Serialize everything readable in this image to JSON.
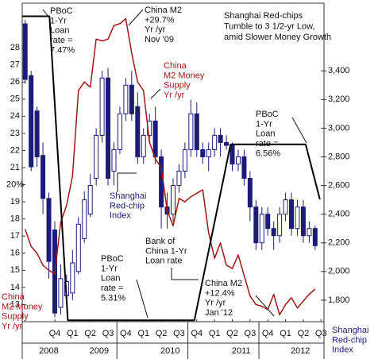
{
  "chart_data": {
    "type": "candlestick",
    "x": [
      5,
      6,
      7,
      8,
      9,
      10,
      11,
      12,
      13,
      14,
      15,
      16,
      17,
      18,
      19,
      20,
      21,
      22,
      23,
      24,
      25,
      26,
      27,
      28,
      29,
      30,
      31,
      32,
      33,
      34,
      35,
      36,
      37,
      38,
      39,
      40,
      41,
      42,
      43,
      44,
      45,
      46,
      47,
      48,
      49,
      50,
      51,
      52,
      53,
      54
    ],
    "xlim": [
      5,
      56
    ],
    "ylim": [
      12,
      30
    ],
    "yticks": [
      13,
      14,
      15,
      16,
      17,
      18,
      19,
      {
        "value": 20,
        "label": "20%"
      },
      21,
      22,
      23,
      24,
      25,
      26,
      27,
      28
    ],
    "y2lim": [
      1650,
      3800
    ],
    "y2ticks": [
      {
        "value": 1800,
        "label": "1,800"
      },
      {
        "value": 2000,
        "label": "2,000"
      },
      {
        "value": 2200,
        "label": "2,200"
      },
      {
        "value": 2400,
        "label": "2,400"
      },
      {
        "value": 2600,
        "label": "2,600"
      },
      {
        "value": 2800,
        "label": "2,800"
      },
      {
        "value": 3000,
        "label": "3,000"
      },
      {
        "value": 3200,
        "label": "3,200"
      },
      {
        "value": 3400,
        "label": "3,400"
      }
    ],
    "y3lim": [
      5.3,
      7.49
    ],
    "xticks": [
      {
        "value": 10.5,
        "label": "Q4"
      },
      {
        "value": 13.5,
        "label": "Q1"
      },
      {
        "value": 16.5,
        "label": "Q2"
      },
      {
        "value": 19.5,
        "label": "Q3"
      },
      {
        "value": 22.5,
        "label": "Q4"
      },
      {
        "value": 25.5,
        "label": "Q1"
      },
      {
        "value": 28.5,
        "label": "Q2"
      },
      {
        "value": 31.5,
        "label": "Q3"
      },
      {
        "value": 34.5,
        "label": "Q4"
      },
      {
        "value": 37.5,
        "label": "Q1"
      },
      {
        "value": 40.5,
        "label": "Q2"
      },
      {
        "value": 43.5,
        "label": "Q3"
      },
      {
        "value": 46.5,
        "label": "Q4"
      },
      {
        "value": 49.5,
        "label": "Q1"
      },
      {
        "value": 52.5,
        "label": "Q2"
      },
      {
        "value": 55.5,
        "label": "Q3"
      }
    ],
    "years": [
      {
        "value": 9.5,
        "label": "2008"
      },
      {
        "value": 18,
        "label": "2009"
      },
      {
        "value": 30,
        "label": "2010"
      },
      {
        "value": 42,
        "label": "2011"
      },
      {
        "value": 52,
        "label": "2012"
      }
    ],
    "series": [
      {
        "type": "candlestick",
        "axis": "y2",
        "color": "#1c1c78",
        "open": [
          3728,
          3367,
          3120,
          2810,
          2510,
          2290,
          1750,
          1830,
          1850,
          2000,
          2230,
          2400,
          2650,
          2950,
          3350,
          2700,
          2850,
          3100,
          3300,
          3150,
          2800,
          2950,
          3050,
          2800,
          2450,
          2400,
          2600,
          2700,
          2850,
          3100,
          2850,
          2800,
          2850,
          2950,
          2900,
          2880,
          2750,
          2800,
          2650,
          2450,
          2200,
          2400,
          2300,
          2250,
          2400,
          2500,
          2300,
          2450,
          2250,
          2300
        ],
        "high": [
          3755,
          3400,
          3150,
          2900,
          2550,
          2350,
          2050,
          1980,
          2150,
          2380,
          2560,
          2680,
          3000,
          3400,
          3420,
          2900,
          3150,
          3350,
          3400,
          3250,
          3000,
          3100,
          3150,
          2850,
          2550,
          2650,
          2750,
          2900,
          3200,
          3180,
          2900,
          2900,
          3000,
          3000,
          2950,
          2900,
          2850,
          2850,
          2700,
          2500,
          2450,
          2450,
          2350,
          2450,
          2550,
          2550,
          2500,
          2500,
          2350,
          2320
        ],
        "low": [
          3312,
          2700,
          2730,
          2400,
          1950,
          1680,
          1700,
          1760,
          1800,
          1980,
          2200,
          2380,
          2600,
          2900,
          2600,
          2600,
          2820,
          3050,
          3050,
          2750,
          2750,
          2900,
          2750,
          2300,
          2300,
          2350,
          2550,
          2650,
          2800,
          2800,
          2750,
          2700,
          2800,
          2800,
          2850,
          2700,
          2700,
          2600,
          2350,
          2150,
          2150,
          2250,
          2150,
          2200,
          2350,
          2250,
          2250,
          2200,
          2200,
          2150
        ],
        "close": [
          3340,
          2730,
          2800,
          2510,
          2070,
          1710,
          1950,
          1930,
          2060,
          2330,
          2500,
          2600,
          2950,
          3350,
          2650,
          2850,
          3100,
          3300,
          3100,
          2800,
          2950,
          3050,
          2800,
          2450,
          2400,
          2600,
          2700,
          2850,
          3100,
          2850,
          2800,
          2850,
          2950,
          2900,
          2880,
          2750,
          2800,
          2650,
          2450,
          2200,
          2400,
          2300,
          2250,
          2400,
          2500,
          2300,
          2450,
          2250,
          2300,
          2180
        ]
      },
      {
        "type": "line",
        "color": "#a31515",
        "values": [
          17.4,
          16.4,
          16.0,
          15.3,
          15.0,
          14.8,
          17.8,
          18.8,
          20.5,
          25.5,
          26.0,
          25.7,
          28.5,
          28.4,
          28.5,
          29.3,
          29.4,
          29.7,
          27.7,
          26.0,
          25.5,
          22.5,
          21.5,
          21.0,
          18.5,
          17.6,
          19.2,
          19.0,
          19.3,
          19.5,
          19.7,
          17.2,
          15.7,
          16.6,
          15.3,
          15.1,
          15.9,
          14.7,
          13.5,
          13.0,
          12.9,
          12.7,
          13.6,
          12.4,
          13.0,
          13.4,
          12.8,
          13.2,
          13.6,
          13.9
        ]
      },
      {
        "type": "line",
        "axis": "y3",
        "color": "#000000",
        "x": [
          5,
          9.6,
          12.7,
          34.1,
          40.2,
          52.9,
          55.3
        ],
        "values": [
          7.47,
          7.47,
          5.31,
          5.31,
          6.56,
          6.56,
          6.17
        ]
      }
    ],
    "annotations": [
      {
        "lines": [
          "PBoC",
          "1-Yr",
          "Loan",
          "rate =",
          "7.47%"
        ]
      },
      {
        "lines": [
          "China M2",
          "+29.7%",
          "Yr /yr",
          "Nov '09"
        ]
      },
      {
        "lines": [
          "Shanghai Red-chips",
          "Tumble to 3 1/2-yr Low,",
          "amid Slower Money Growth"
        ]
      },
      {
        "lines": [
          "China",
          "M2 Money",
          "Supply",
          "Yr /yr"
        ],
        "color": "#a31515"
      },
      {
        "lines": [
          "PBoC",
          "1-Yr",
          "Loan",
          "rate =",
          "6.56%"
        ]
      },
      {
        "lines": [
          "Shanghai",
          "Red-chip",
          "Index"
        ],
        "color": "#1c1c78"
      },
      {
        "lines": [
          "Bank of",
          "China 1-Yr",
          "Loan rate"
        ]
      },
      {
        "lines": [
          "PBoC",
          "1-Yr",
          "Loan",
          "rate =",
          "5.31%"
        ]
      },
      {
        "lines": [
          "China M2",
          "+12.4%",
          "Yr /yr",
          "Jan '12"
        ]
      },
      {
        "lines": [
          "China",
          "M2 Money",
          "Supply",
          "Yr /yr"
        ],
        "color": "#a31515"
      },
      {
        "lines": [
          "Shanghai",
          "Red-chip",
          "Index"
        ],
        "color": "#1c1c78"
      }
    ]
  }
}
